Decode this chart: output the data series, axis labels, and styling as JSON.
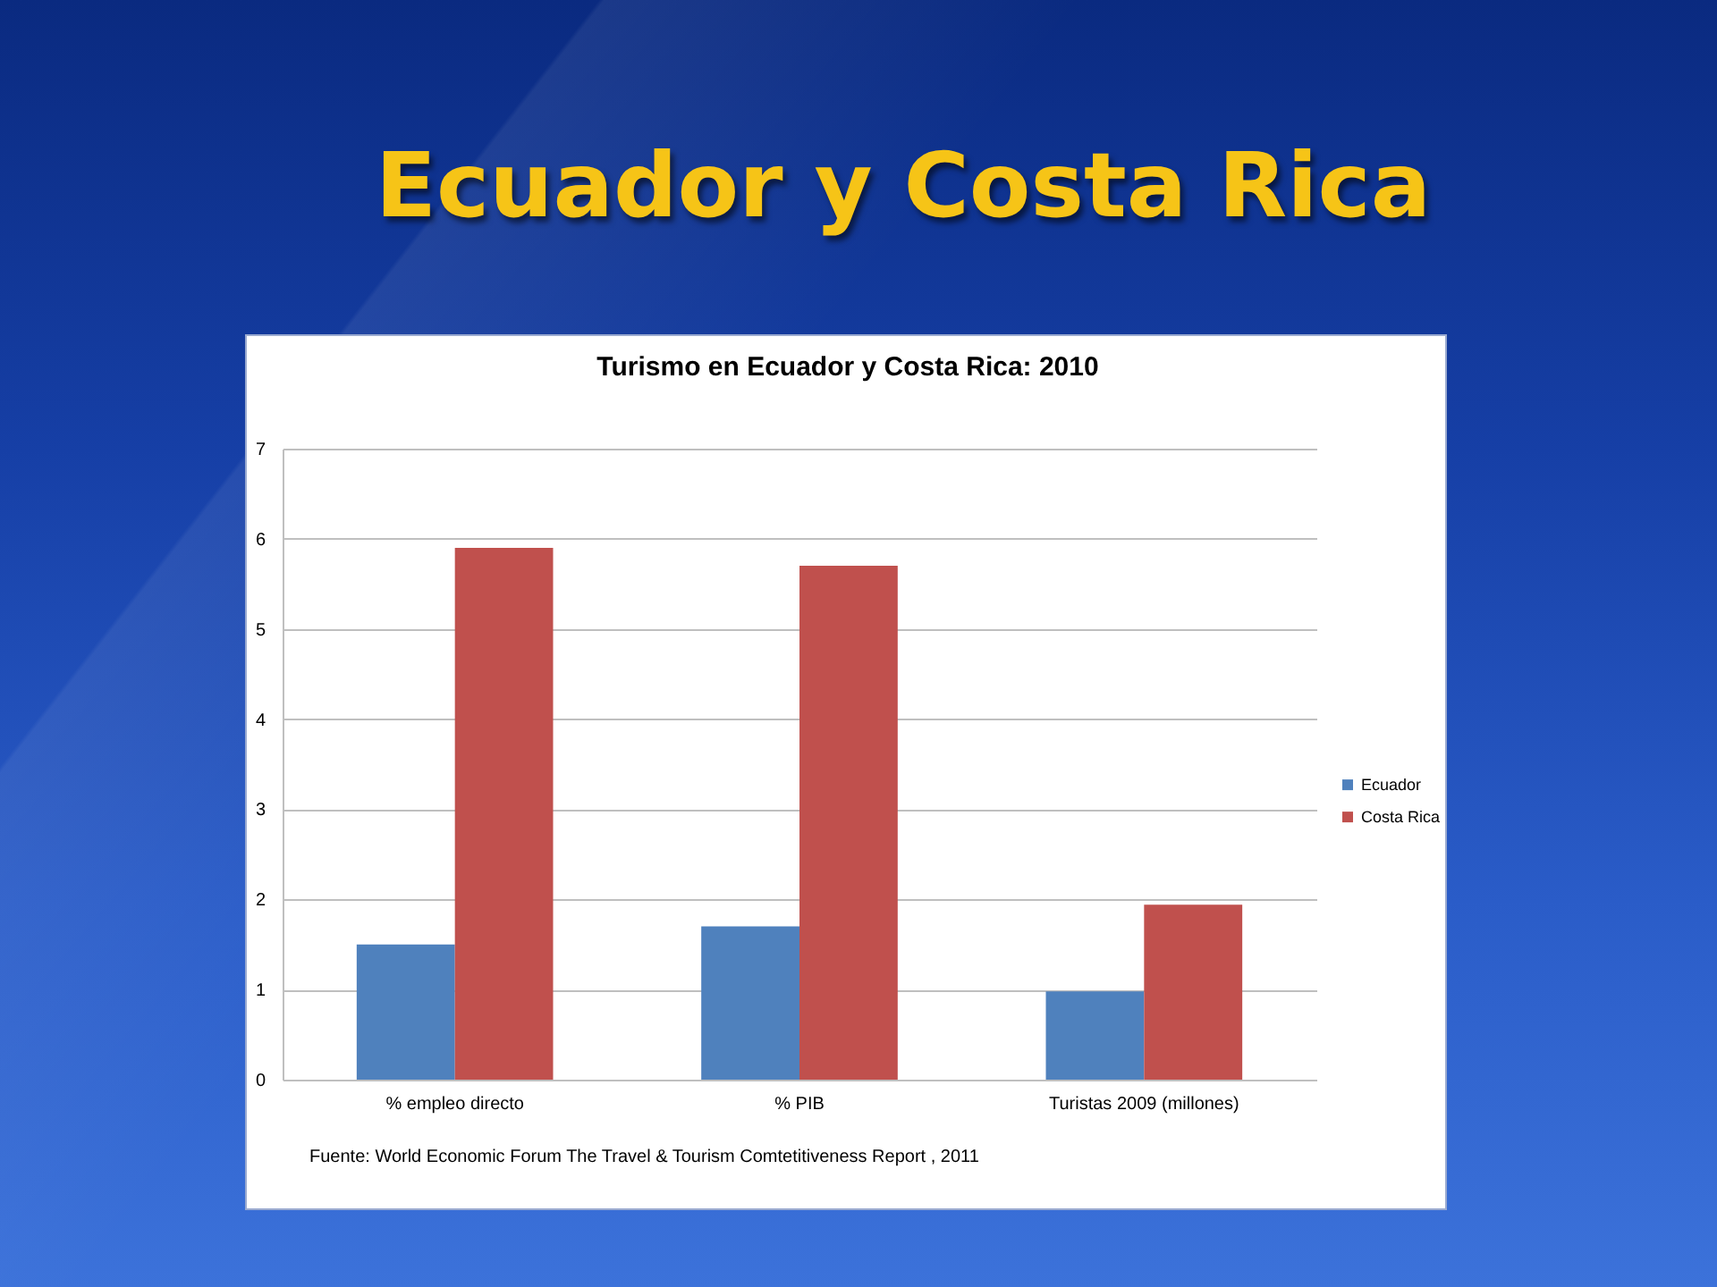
{
  "chart_data": {
    "type": "bar",
    "title": "Ecuador y Costa Rica",
    "subtitle": "Turismo en Ecuador y Costa Rica: 2010",
    "categories": [
      "% empleo directo",
      "% PIB",
      "Turistas 2009 (millones)"
    ],
    "series": [
      {
        "name": "Ecuador",
        "color": "#4f81bd",
        "values": [
          1.5,
          1.7,
          0.98
        ]
      },
      {
        "name": "Costa Rica",
        "color": "#c0504d",
        "values": [
          5.9,
          5.7,
          1.94
        ]
      }
    ],
    "ylim": [
      0,
      7
    ],
    "yticks": [
      0,
      1,
      2,
      3,
      4,
      5,
      6,
      7
    ],
    "grid": "y",
    "legend": "right",
    "annotations": [
      "Fuente: World Economic Forum The Travel & Tourism Comtetitiveness Report , 2011"
    ]
  }
}
